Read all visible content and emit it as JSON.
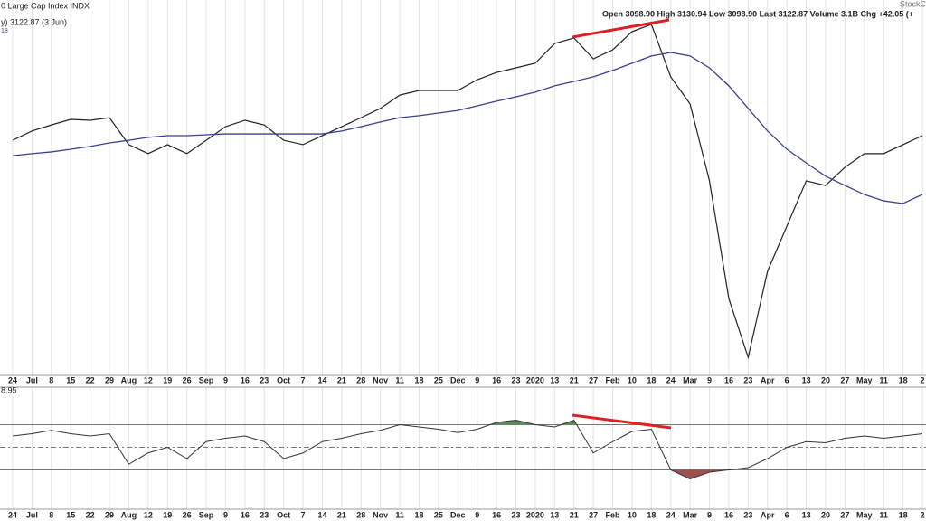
{
  "chart_data": {
    "type": "line",
    "title": "0 Large Cap Index INDX",
    "subtitle": "y) 3122.87 (3 Jun)",
    "ma_label": "18",
    "quote": "Open 3098.90  High 3130.94  Low 3098.90  Last 3122.87  Volume 3.1B  Chg +42.05 (+",
    "watermark": "StockC",
    "indicator_label": "8.95",
    "categories": [
      "24",
      "Jul",
      "8",
      "15",
      "22",
      "29",
      "Aug",
      "12",
      "19",
      "26",
      "Sep",
      "9",
      "16",
      "23",
      "Oct",
      "7",
      "14",
      "21",
      "28",
      "Nov",
      "11",
      "18",
      "25",
      "Dec",
      "9",
      "16",
      "23",
      "2020",
      "13",
      "21",
      "27",
      "Feb",
      "10",
      "18",
      "24",
      "Mar",
      "9",
      "16",
      "23",
      "Apr",
      "6",
      "13",
      "20",
      "27",
      "May",
      "11",
      "18",
      "2"
    ],
    "ylim": [
      2176,
      3471
    ],
    "series": [
      {
        "name": "Price",
        "color": "#222222",
        "values": [
          2987,
          3019,
          3040,
          3059,
          3056,
          3065,
          2972,
          2941,
          2972,
          2941,
          2987,
          3034,
          3056,
          3040,
          2987,
          2972,
          3003,
          3034,
          3065,
          3097,
          3143,
          3159,
          3159,
          3159,
          3196,
          3221,
          3237,
          3253,
          3321,
          3340,
          3268,
          3299,
          3362,
          3387,
          3206,
          3112,
          2847,
          2441,
          2238,
          2535,
          2691,
          2847,
          2831,
          2894,
          2941,
          2941,
          2972,
          3003
        ]
      },
      {
        "name": "MA",
        "color": "#3d3f8f",
        "values": [
          2934,
          2941,
          2947,
          2956,
          2966,
          2978,
          2987,
          2997,
          3003,
          3003,
          3006,
          3009,
          3009,
          3009,
          3009,
          3009,
          3009,
          3019,
          3034,
          3050,
          3065,
          3072,
          3081,
          3090,
          3106,
          3122,
          3137,
          3153,
          3175,
          3190,
          3206,
          3228,
          3253,
          3278,
          3290,
          3278,
          3237,
          3175,
          3097,
          3019,
          2956,
          2909,
          2863,
          2831,
          2800,
          2778,
          2769,
          2800
        ]
      }
    ],
    "indicator": {
      "type": "line",
      "color": "#333333",
      "ylim": [
        0,
        100
      ],
      "levels": [
        30,
        50,
        70
      ],
      "values": [
        60,
        62,
        65,
        62,
        60,
        62,
        35,
        45,
        50,
        40,
        55,
        58,
        60,
        55,
        40,
        45,
        55,
        58,
        62,
        65,
        70,
        68,
        66,
        63,
        66,
        72,
        74,
        70,
        68,
        74,
        45,
        55,
        64,
        66,
        30,
        22,
        28,
        30,
        32,
        40,
        50,
        55,
        54,
        58,
        60,
        58,
        60,
        62
      ],
      "overbought_color": "#5b8a5b",
      "oversold_color": "#a05050"
    },
    "grid": true
  }
}
